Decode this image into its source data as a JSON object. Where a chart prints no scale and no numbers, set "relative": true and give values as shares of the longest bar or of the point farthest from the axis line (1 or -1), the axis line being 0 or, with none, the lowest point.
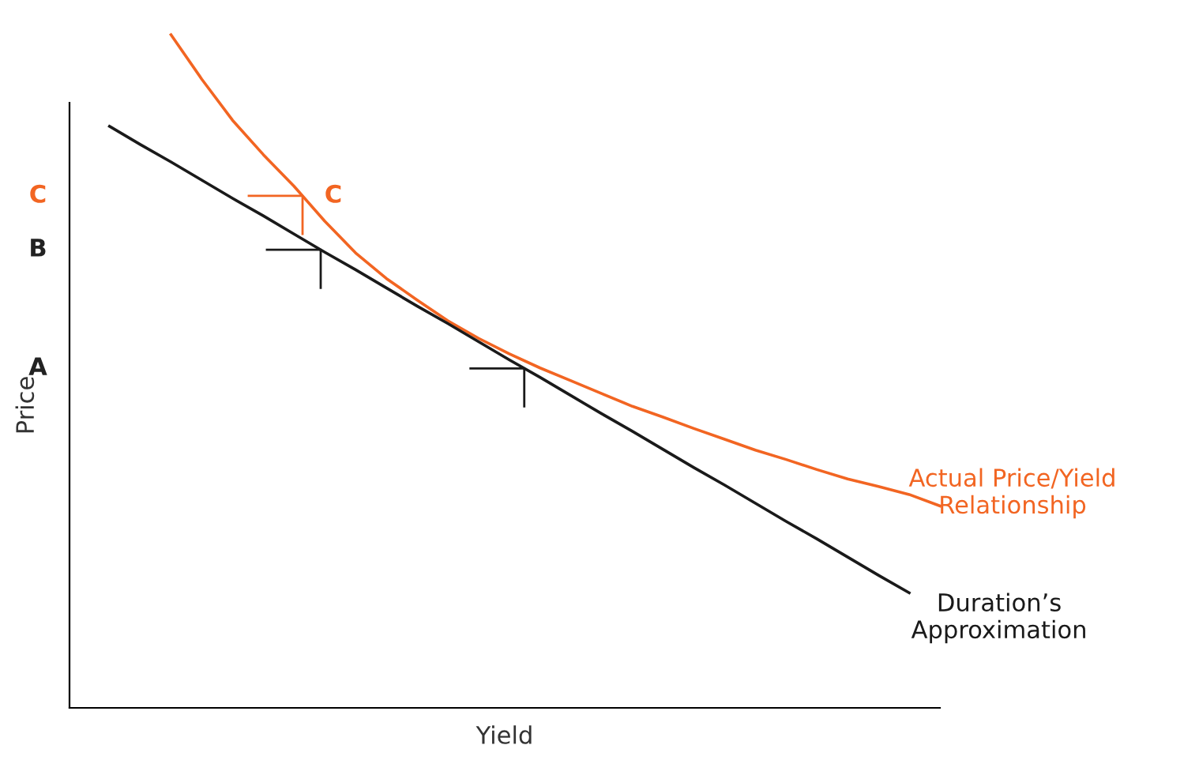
{
  "chart_data": {
    "type": "line",
    "relative": true,
    "xlabel": "Yield",
    "ylabel": "Price",
    "legend": false,
    "categories": [
      null,
      null,
      null,
      null,
      null,
      null,
      null,
      null,
      null,
      null,
      null,
      null,
      null,
      null,
      null,
      null,
      null,
      null,
      null,
      null,
      null,
      null,
      null,
      null,
      null,
      null,
      null,
      null
    ],
    "series": [
      {
        "name": "Actual Price/Yield\nRelationship",
        "color": "#f26522",
        "values": [
          null,
          null,
          1.0,
          0.934,
          0.873,
          0.822,
          0.775,
          0.723,
          0.676,
          0.638,
          0.606,
          0.575,
          0.549,
          0.526,
          0.505,
          0.486,
          0.467,
          0.448,
          0.432,
          0.415,
          0.399,
          0.383,
          0.369,
          0.354,
          0.34,
          0.329,
          0.317,
          0.3
        ]
      },
      {
        "name": "Duration’s\nApproximation",
        "color": "#1a1a1a",
        "values": [
          0.864,
          0.837,
          0.811,
          0.784,
          0.757,
          0.731,
          0.704,
          0.677,
          0.651,
          0.624,
          0.597,
          0.571,
          0.544,
          0.517,
          0.491,
          0.464,
          0.437,
          0.411,
          0.384,
          0.357,
          0.331,
          0.304,
          0.277,
          0.251,
          0.224,
          0.197,
          0.171,
          null
        ]
      }
    ],
    "annotations": [
      "A",
      "B",
      "C",
      "C"
    ]
  }
}
